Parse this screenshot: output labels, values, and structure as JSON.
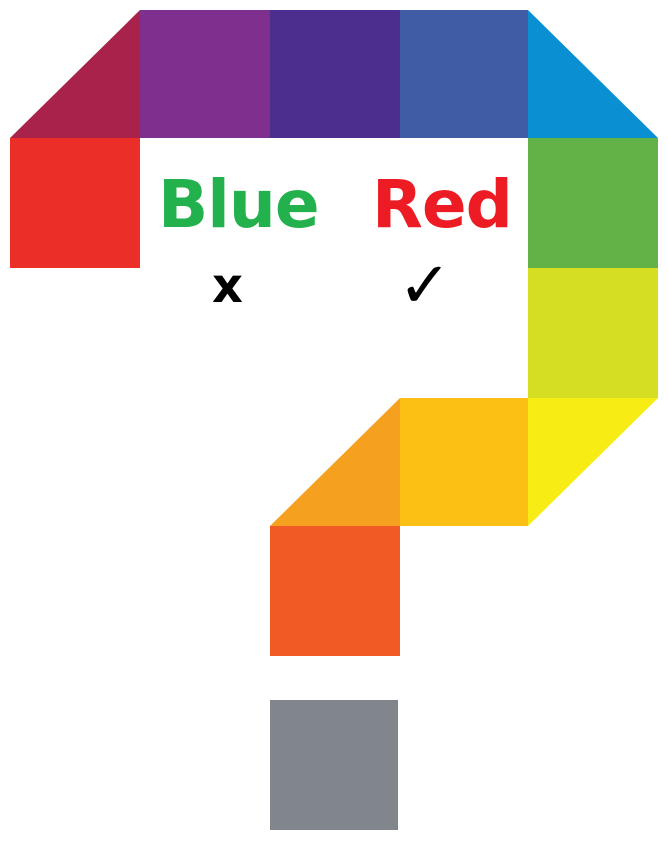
{
  "labels": {
    "blue": {
      "text": "Blue",
      "color": "#22b14c"
    },
    "red": {
      "text": "Red",
      "color": "#ed1c24"
    }
  },
  "marks": {
    "wrong": "x",
    "right": "✓"
  },
  "question_mark_colors": {
    "top_left_diagonal": "#a8224b",
    "top_purple": "#7f2f8e",
    "top_indigo": "#4c2e8e",
    "top_blue": "#3f5ca4",
    "top_right_diagonal": "#0b8fd3",
    "left_red": "#ec2e28",
    "right_green": "#63b247",
    "right_yellow_green": "#d6de23",
    "right_yellow_diagonal": "#f7ec13",
    "middle_amber": "#fcbf14",
    "middle_orange_diagonal": "#f6a01f",
    "stem_orange": "#f15a24",
    "dot_gray": "#80868c"
  }
}
